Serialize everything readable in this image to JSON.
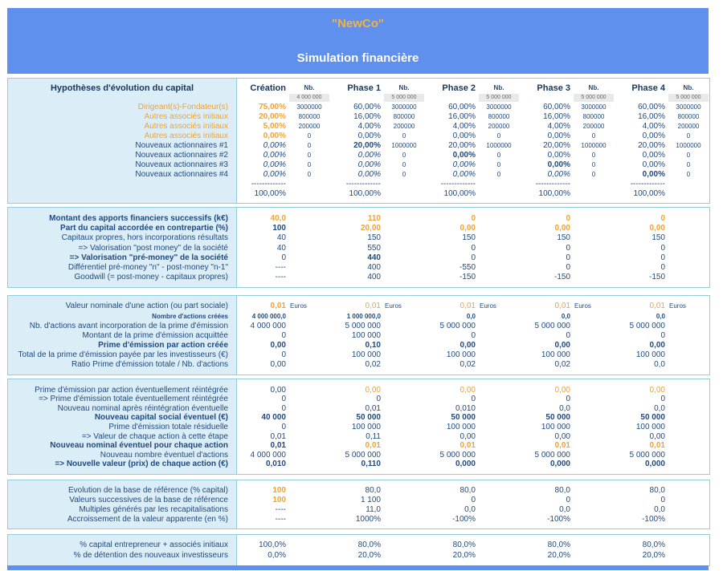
{
  "banner": {
    "company": "\"NewCo\"",
    "subtitle": "Simulation financière"
  },
  "colors": {
    "banner_blue": "#6090EE",
    "accent_orange": "#F2A231",
    "text_navy": "#1F497D",
    "section_border": "#92CDDC",
    "label_background": "#DBEEF7",
    "share_box_grey": "#E9E9E9"
  },
  "header": {
    "stages": [
      "Création",
      "Phase 1",
      "Phase 2",
      "Phase 3",
      "Phase 4"
    ],
    "nb_label": "Nb.",
    "share_totals": [
      "4 000 000",
      "5 000 000",
      "5 000 000",
      "5 000 000",
      "5 000 000"
    ]
  },
  "sections": [
    {
      "title": "Hypothèses d'évolution du capital",
      "rows": [
        {
          "label": "Dirigeant(s)-Fondateur(s)",
          "ls": "orange",
          "v": [
            "75,00%",
            "60,00%",
            "60,00%",
            "60,00%",
            "60,00%"
          ],
          "vs": [
            "ob",
            "",
            "",
            "",
            ""
          ],
          "nb": [
            "3000000",
            "3000000",
            "3000000",
            "3000000",
            "3000000"
          ]
        },
        {
          "label": "Autres associés initiaux",
          "ls": "orange",
          "v": [
            "20,00%",
            "16,00%",
            "16,00%",
            "16,00%",
            "16,00%"
          ],
          "vs": [
            "ob",
            "",
            "",
            "",
            ""
          ],
          "nb": [
            "800000",
            "800000",
            "800000",
            "800000",
            "800000"
          ]
        },
        {
          "label": "Autres associés initiaux",
          "ls": "orange",
          "v": [
            "5,00%",
            "4,00%",
            "4,00%",
            "4,00%",
            "4,00%"
          ],
          "vs": [
            "ob",
            "",
            "",
            "",
            ""
          ],
          "nb": [
            "200000",
            "200000",
            "200000",
            "200000",
            "200000"
          ]
        },
        {
          "label": "Autres associés initiaux",
          "ls": "orange",
          "v": [
            "0,00%",
            "0,00%",
            "0,00%",
            "0,00%",
            "0,00%"
          ],
          "vs": [
            "ob",
            "",
            "",
            "",
            ""
          ],
          "nb": [
            "0",
            "0",
            "0",
            "0",
            "0"
          ]
        },
        {
          "label": "Nouveaux actionnaires #1",
          "v": [
            "0,00%",
            "20,00%",
            "20,00%",
            "20,00%",
            "20,00%"
          ],
          "vs": [
            "i",
            "b",
            "",
            "",
            ""
          ],
          "nb": [
            "0",
            "1000000",
            "1000000",
            "1000000",
            "1000000"
          ]
        },
        {
          "label": "Nouveaux actionnaires #2",
          "v": [
            "0,00%",
            "0,00%",
            "0,00%",
            "0,00%",
            "0,00%"
          ],
          "vs": [
            "i",
            "i",
            "b",
            "",
            ""
          ],
          "nb": [
            "0",
            "0",
            "0",
            "0",
            "0"
          ]
        },
        {
          "label": "Nouveaux actionnaires #3",
          "v": [
            "0,00%",
            "0,00%",
            "0,00%",
            "0,00%",
            "0,00%"
          ],
          "vs": [
            "i",
            "i",
            "i",
            "b",
            ""
          ],
          "nb": [
            "0",
            "0",
            "0",
            "0",
            "0"
          ]
        },
        {
          "label": "Nouveaux actionnaires #4",
          "v": [
            "0,00%",
            "0,00%",
            "0,00%",
            "0,00%",
            "0,00%"
          ],
          "vs": [
            "i",
            "i",
            "i",
            "i",
            "b"
          ],
          "nb": [
            "0",
            "0",
            "0",
            "0",
            "0"
          ]
        },
        {
          "label": "",
          "v": [
            "-------------",
            "-------------",
            "-------------",
            "-------------",
            "-------------"
          ],
          "vs": [
            "d",
            "d",
            "d",
            "d",
            "d"
          ]
        },
        {
          "label": "",
          "v": [
            "100,00%",
            "100,00%",
            "100,00%",
            "100,00%",
            "100,00%"
          ]
        }
      ]
    },
    {
      "rows": [
        {
          "label": "Montant des apports financiers successifs (k€)",
          "ls": "b",
          "v": [
            "40,0",
            "110",
            "0",
            "0",
            "0"
          ],
          "vs": [
            "ob",
            "ob",
            "ob",
            "ob",
            "ob"
          ]
        },
        {
          "label": "Part du capital accordée en contrepartie (%)",
          "ls": "b",
          "v": [
            "100",
            "20,00",
            "0,00",
            "0,00",
            "0,00"
          ],
          "vs": [
            "b",
            "ob",
            "ob",
            "ob",
            "ob"
          ]
        },
        {
          "label": "Capitaux propres, hors incorporations résultats",
          "v": [
            "40",
            "150",
            "150",
            "150",
            "150"
          ]
        },
        {
          "label": "=> Valorisation \"post money\" de la société",
          "v": [
            "40",
            "550",
            "0",
            "0",
            "0"
          ]
        },
        {
          "label": "=> Valorisation \"pré-money\" de la société",
          "ls": "b",
          "v": [
            "0",
            "440",
            "0",
            "0",
            "0"
          ],
          "vs": [
            "",
            "b",
            "",
            "",
            ""
          ]
        },
        {
          "label": "Différentiel pré-money \"n\" - post-money \"n-1\"",
          "v": [
            "----",
            "400",
            "-550",
            "0",
            "0"
          ],
          "vs": [
            "d",
            "",
            "",
            "",
            ""
          ]
        },
        {
          "label": "Goodwill (= post-money - capitaux propres)",
          "v": [
            "----",
            "400",
            "-150",
            "-150",
            "-150"
          ],
          "vs": [
            "d",
            "",
            "",
            "",
            ""
          ]
        }
      ]
    },
    {
      "rows": [
        {
          "label": "Valeur nominale d'une action (ou part sociale)",
          "unit": "Euros",
          "v": [
            "0,01",
            "0,01",
            "0,01",
            "0,01",
            "0,01"
          ],
          "vs": [
            "ob",
            "o",
            "o",
            "o",
            "o"
          ]
        },
        {
          "label": "Nombre d'actions créées",
          "ls": "sb",
          "v": [
            "4 000 000,0",
            "1 000 000,0",
            "0,0",
            "0,0",
            "0,0"
          ],
          "vs": [
            "sb",
            "sb",
            "sb",
            "sb",
            "sb"
          ]
        },
        {
          "label": "Nb. d'actions avant incorporation de la prime d'émission",
          "v": [
            "4 000 000",
            "5 000 000",
            "5 000 000",
            "5 000 000",
            "5 000 000"
          ]
        },
        {
          "label": "Montant de la prime d'émission acquittée",
          "v": [
            "0",
            "100 000",
            "0",
            "0",
            "0"
          ]
        },
        {
          "label": "Prime d'émission par action créée",
          "ls": "b",
          "v": [
            "0,00",
            "0,10",
            "0,00",
            "0,00",
            "0,00"
          ],
          "vs": [
            "b",
            "b",
            "b",
            "b",
            "b"
          ]
        },
        {
          "label": "Total de la prime d'émission payée par les investisseurs (€)",
          "v": [
            "0",
            "100 000",
            "100 000",
            "100 000",
            "100 000"
          ]
        },
        {
          "label": "Ratio Prime d'émission totale / Nb. d'actions",
          "v": [
            "0,00",
            "0,02",
            "0,02",
            "0,02",
            "0,0"
          ]
        }
      ]
    },
    {
      "rows": [
        {
          "label": "Prime d'émission par action éventuellement réintégrée",
          "v": [
            "0,00",
            "0,00",
            "0,00",
            "0,00",
            "0,00"
          ],
          "vs": [
            "",
            "o",
            "o",
            "o",
            "o"
          ]
        },
        {
          "label": "=> Prime d'émission totale éventuellement réintégrée",
          "v": [
            "0",
            "0",
            "0",
            "0",
            "0"
          ]
        },
        {
          "label": "Nouveau nominal après réintégration éventuelle",
          "v": [
            "0",
            "0,01",
            "0,010",
            "0,0",
            "0,0"
          ]
        },
        {
          "label": "Nouveau capital social éventuel (€)",
          "ls": "b",
          "v": [
            "40 000",
            "50 000",
            "50 000",
            "50 000",
            "50 000"
          ],
          "vs": [
            "b",
            "b",
            "b",
            "b",
            "b"
          ]
        },
        {
          "label": "Prime d'émission totale résiduelle",
          "v": [
            "0",
            "100 000",
            "100 000",
            "100 000",
            "100 000"
          ]
        },
        {
          "label": "=> Valeur de chaque action à cette étape",
          "v": [
            "0,01",
            "0,11",
            "0,00",
            "0,00",
            "0,00"
          ]
        },
        {
          "label": "Nouveau nominal éventuel pour chaque action",
          "ls": "b",
          "v": [
            "0,01",
            "0,01",
            "0,01",
            "0,01",
            "0,01"
          ],
          "vs": [
            "b",
            "ob",
            "ob",
            "ob",
            "ob"
          ]
        },
        {
          "label": "Nouveau nombre éventuel d'actions",
          "v": [
            "4 000 000",
            "5 000 000",
            "5 000 000",
            "5 000 000",
            "5 000 000"
          ]
        },
        {
          "label": "=> Nouvelle valeur (prix) de chaque action (€)",
          "ls": "b",
          "v": [
            "0,010",
            "0,110",
            "0,000",
            "0,000",
            "0,000"
          ],
          "vs": [
            "b",
            "b",
            "b",
            "b",
            "b"
          ]
        }
      ]
    },
    {
      "rows": [
        {
          "label": "Evolution de la base de référence (% capital)",
          "v": [
            "100",
            "80,0",
            "80,0",
            "80,0",
            "80,0"
          ],
          "vs": [
            "ob",
            "",
            "",
            "",
            ""
          ]
        },
        {
          "label": "Valeurs successives de la base de référence",
          "v": [
            "100",
            "1 100",
            "0",
            "0",
            "0"
          ],
          "vs": [
            "ob",
            "",
            "",
            "",
            ""
          ]
        },
        {
          "label": "Multiples générés par les recapitalisations",
          "v": [
            "----",
            "11,0",
            "0,0",
            "0,0",
            "0,0"
          ],
          "vs": [
            "d",
            "",
            "",
            "",
            ""
          ]
        },
        {
          "label": "Accroissement de la valeur apparente (en %)",
          "v": [
            "----",
            "1000%",
            "-100%",
            "-100%",
            "-100%"
          ],
          "vs": [
            "d",
            "",
            "",
            "",
            ""
          ]
        }
      ]
    },
    {
      "rows": [
        {
          "label": "% capital entrepreneur + associés initiaux",
          "v": [
            "100,0%",
            "80,0%",
            "80,0%",
            "80,0%",
            "80,0%"
          ]
        },
        {
          "label": "% de détention des nouveaux investisseurs",
          "v": [
            "0,0%",
            "20,0%",
            "20,0%",
            "20,0%",
            "20,0%"
          ]
        }
      ]
    }
  ]
}
